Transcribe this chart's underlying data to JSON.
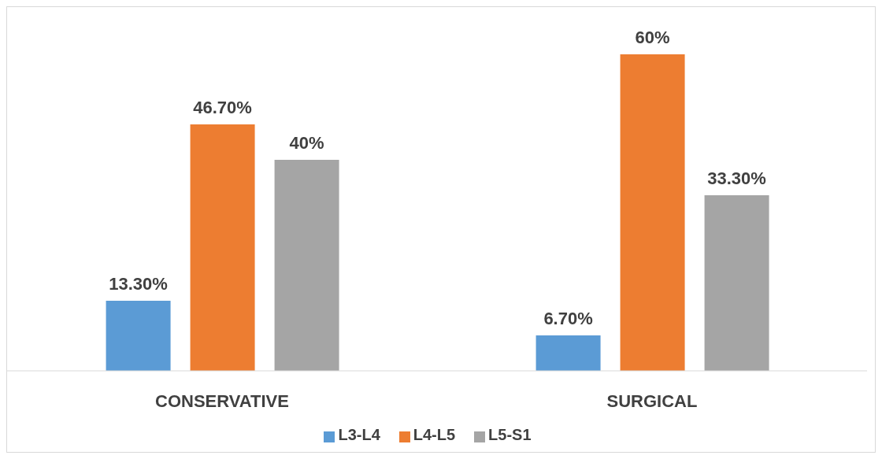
{
  "chart_data": {
    "type": "bar",
    "categories": [
      "CONSERVATIVE",
      "SURGICAL"
    ],
    "series": [
      {
        "name": "L3-L4",
        "color": "#5b9bd5",
        "values": [
          13.3,
          6.7
        ],
        "value_labels": [
          "13.30%",
          "6.70%"
        ]
      },
      {
        "name": "L4-L5",
        "color": "#ed7d31",
        "values": [
          46.7,
          60
        ],
        "value_labels": [
          "46.70%",
          "60%"
        ]
      },
      {
        "name": "L5-S1",
        "color": "#a5a5a5",
        "values": [
          40,
          33.3
        ],
        "value_labels": [
          "40%",
          "33.30%"
        ]
      }
    ],
    "legend": "bottom",
    "grid": false
  }
}
